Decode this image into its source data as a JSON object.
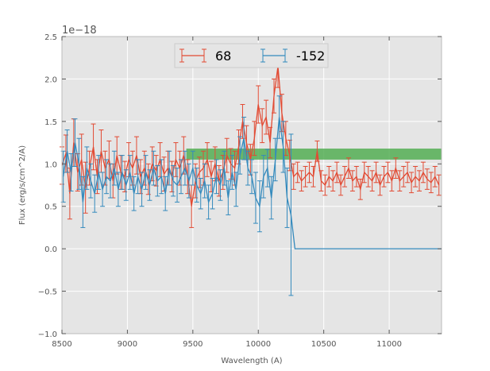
{
  "chart_data": {
    "type": "line",
    "xlabel": "Wavelength (A)",
    "ylabel": "Flux (erg/s/cm^2/A)",
    "y_offset_label": "1e−18",
    "xlim": [
      8500,
      11400
    ],
    "ylim": [
      -1.0,
      2.5
    ],
    "x_ticks": [
      8500,
      9000,
      9500,
      10000,
      10500,
      11000
    ],
    "x_tick_labels": [
      "8500",
      "9000",
      "9500",
      "10000",
      "10500",
      "11000"
    ],
    "y_ticks": [
      -1.0,
      -0.5,
      0.0,
      0.5,
      1.0,
      1.5,
      2.0,
      2.5
    ],
    "y_tick_labels": [
      "−1.0",
      "−0.5",
      "0.0",
      "0.5",
      "1.0",
      "1.5",
      "2.0",
      "2.5"
    ],
    "grid": true,
    "legend_position": "top-center",
    "band": {
      "x": [
        9450,
        11400
      ],
      "y": [
        1.05,
        1.18
      ],
      "color": "#4aaa4a"
    },
    "colors": {
      "red": "#e24a33",
      "blue": "#348abd",
      "background": "#e5e5e5",
      "grid": "#ffffff"
    },
    "series": [
      {
        "name": "68",
        "color": "#e24a33",
        "x": [
          8500,
          8530,
          8560,
          8590,
          8620,
          8650,
          8680,
          8710,
          8740,
          8770,
          8800,
          8830,
          8860,
          8890,
          8920,
          8950,
          8980,
          9010,
          9040,
          9070,
          9100,
          9130,
          9160,
          9190,
          9220,
          9250,
          9280,
          9310,
          9340,
          9370,
          9400,
          9430,
          9460,
          9490,
          9520,
          9550,
          9580,
          9610,
          9640,
          9670,
          9700,
          9730,
          9760,
          9790,
          9820,
          9850,
          9880,
          9910,
          9940,
          9970,
          10000,
          10030,
          10060,
          10090,
          10120,
          10150,
          10180,
          10210,
          10240,
          10270,
          10300,
          10330,
          10360,
          10390,
          10420,
          10450,
          10480,
          10510,
          10540,
          10570,
          10600,
          10630,
          10660,
          10690,
          10720,
          10750,
          10780,
          10810,
          10840,
          10870,
          10900,
          10930,
          10960,
          10990,
          11020,
          11050,
          11080,
          11110,
          11140,
          11170,
          11200,
          11230,
          11260,
          11290,
          11320,
          11350,
          11380
        ],
        "y": [
          0.98,
          1.12,
          0.65,
          1.25,
          0.9,
          1.05,
          0.72,
          0.95,
          1.2,
          0.85,
          1.15,
          0.95,
          1.05,
          0.8,
          1.1,
          0.9,
          0.85,
          1.05,
          0.95,
          1.1,
          0.85,
          0.95,
          0.82,
          1.0,
          0.92,
          1.05,
          0.88,
          0.95,
          0.85,
          1.05,
          0.95,
          1.1,
          0.85,
          0.5,
          0.8,
          0.9,
          0.95,
          1.05,
          0.85,
          1.0,
          0.8,
          0.9,
          1.1,
          1.0,
          0.95,
          1.2,
          1.5,
          1.25,
          1.05,
          1.3,
          1.7,
          1.45,
          1.55,
          1.25,
          1.8,
          2.15,
          1.6,
          1.3,
          1.1,
          0.85,
          0.9,
          0.8,
          0.85,
          0.9,
          0.85,
          1.15,
          0.8,
          0.75,
          0.85,
          0.8,
          0.9,
          0.75,
          0.85,
          0.95,
          0.8,
          0.85,
          0.7,
          0.9,
          0.85,
          0.8,
          0.9,
          0.75,
          0.85,
          0.9,
          0.8,
          0.95,
          0.8,
          0.85,
          0.9,
          0.78,
          0.85,
          0.8,
          0.9,
          0.82,
          0.78,
          0.85,
          0.75
        ],
        "err": [
          0.22,
          0.22,
          0.3,
          0.28,
          0.22,
          0.3,
          0.3,
          0.2,
          0.27,
          0.2,
          0.25,
          0.2,
          0.22,
          0.2,
          0.22,
          0.2,
          0.18,
          0.2,
          0.2,
          0.22,
          0.2,
          0.2,
          0.18,
          0.2,
          0.18,
          0.2,
          0.2,
          0.2,
          0.18,
          0.2,
          0.2,
          0.22,
          0.2,
          0.25,
          0.2,
          0.18,
          0.2,
          0.2,
          0.18,
          0.2,
          0.18,
          0.2,
          0.2,
          0.18,
          0.2,
          0.2,
          0.2,
          0.2,
          0.18,
          0.2,
          0.22,
          0.2,
          0.2,
          0.18,
          0.2,
          0.25,
          0.22,
          0.2,
          0.18,
          0.15,
          0.12,
          0.12,
          0.12,
          0.12,
          0.12,
          0.12,
          0.12,
          0.12,
          0.12,
          0.12,
          0.12,
          0.12,
          0.12,
          0.12,
          0.12,
          0.12,
          0.12,
          0.12,
          0.12,
          0.12,
          0.12,
          0.12,
          0.12,
          0.12,
          0.12,
          0.12,
          0.12,
          0.12,
          0.12,
          0.12,
          0.12,
          0.12,
          0.12,
          0.12,
          0.12,
          0.12,
          0.12
        ]
      },
      {
        "name": "-152",
        "color": "#348abd",
        "x": [
          8510,
          8540,
          8570,
          8600,
          8630,
          8660,
          8690,
          8720,
          8750,
          8780,
          8810,
          8840,
          8870,
          8900,
          8930,
          8960,
          8990,
          9020,
          9050,
          9080,
          9110,
          9140,
          9170,
          9200,
          9230,
          9260,
          9290,
          9320,
          9350,
          9380,
          9410,
          9440,
          9470,
          9500,
          9530,
          9560,
          9590,
          9620,
          9650,
          9680,
          9710,
          9740,
          9770,
          9800,
          9830,
          9860,
          9890,
          9920,
          9950,
          9980,
          10010,
          10040,
          10070,
          10100,
          10130,
          10160,
          10190,
          10220,
          10250,
          10280,
          10300,
          11400
        ],
        "y": [
          0.85,
          1.15,
          0.9,
          1.25,
          1.0,
          0.55,
          0.95,
          0.8,
          0.65,
          0.9,
          0.7,
          0.85,
          0.8,
          0.95,
          0.7,
          0.9,
          0.75,
          0.9,
          0.65,
          0.85,
          0.7,
          0.9,
          0.75,
          0.95,
          0.8,
          0.85,
          0.65,
          0.95,
          0.8,
          0.75,
          0.85,
          0.95,
          0.8,
          0.95,
          0.75,
          0.65,
          0.8,
          0.55,
          0.65,
          0.85,
          0.75,
          0.95,
          0.6,
          0.9,
          0.7,
          1.1,
          1.3,
          0.95,
          0.85,
          0.6,
          0.5,
          0.85,
          0.95,
          0.6,
          1.05,
          1.55,
          1.2,
          0.6,
          0.4,
          0.0,
          0.0,
          0.0
        ],
        "err": [
          0.3,
          0.25,
          0.22,
          0.28,
          0.3,
          0.3,
          0.25,
          0.2,
          0.22,
          0.2,
          0.2,
          0.2,
          0.2,
          0.2,
          0.2,
          0.2,
          0.18,
          0.2,
          0.2,
          0.2,
          0.2,
          0.2,
          0.18,
          0.2,
          0.18,
          0.2,
          0.2,
          0.2,
          0.18,
          0.2,
          0.2,
          0.2,
          0.2,
          0.2,
          0.2,
          0.18,
          0.2,
          0.2,
          0.18,
          0.2,
          0.18,
          0.2,
          0.2,
          0.2,
          0.2,
          0.22,
          0.25,
          0.2,
          0.2,
          0.3,
          0.3,
          0.25,
          0.22,
          0.25,
          0.25,
          0.25,
          0.3,
          0.35,
          0.95,
          0.0,
          0.0,
          0.0
        ]
      }
    ]
  }
}
